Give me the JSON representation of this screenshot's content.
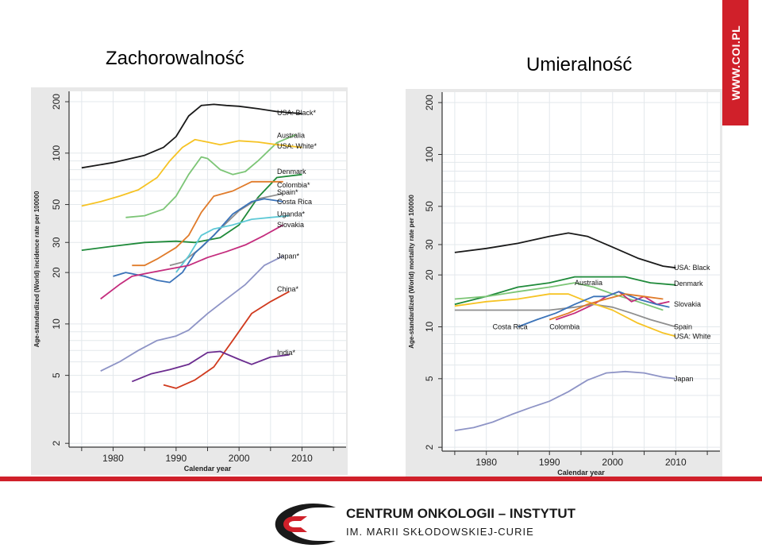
{
  "slide": {
    "title_left": "Zachorowalność",
    "title_right": "Umieralność",
    "banner_text": "WWW.COI.PL",
    "footer_line1": "CENTRUM ONKOLOGII – INSTYTUT",
    "footer_line2": "IM. MARII SKŁODOWSKIEJ-CURIE",
    "brand_color": "#d0202a"
  },
  "chart_data": [
    {
      "type": "line",
      "yscale": "log",
      "xlabel": "Calendar year",
      "ylabel": "Age-standardized (World) incidence rate per 100000",
      "xlim": [
        1973,
        2017
      ],
      "ylim": [
        1.9,
        230
      ],
      "xticks": [
        1980,
        1990,
        2000,
        2010
      ],
      "yticks": [
        2,
        5,
        10,
        20,
        30,
        50,
        100,
        200
      ],
      "grid": true,
      "series": [
        {
          "name": "USA: Black*",
          "color": "#1a1a1a",
          "label_y": 172,
          "points": [
            [
              1975,
              82
            ],
            [
              1980,
              88
            ],
            [
              1985,
              97
            ],
            [
              1988,
              108
            ],
            [
              1990,
              125
            ],
            [
              1992,
              165
            ],
            [
              1994,
              190
            ],
            [
              1996,
              193
            ],
            [
              1998,
              190
            ],
            [
              2000,
              188
            ],
            [
              2003,
              182
            ],
            [
              2006,
              175
            ],
            [
              2010,
              170
            ]
          ]
        },
        {
          "name": "Australia",
          "color": "#7cc576",
          "label_y": 127,
          "points": [
            [
              1982,
              42
            ],
            [
              1985,
              43
            ],
            [
              1988,
              47
            ],
            [
              1990,
              56
            ],
            [
              1992,
              75
            ],
            [
              1994,
              95
            ],
            [
              1995,
              93
            ],
            [
              1997,
              80
            ],
            [
              1999,
              75
            ],
            [
              2001,
              78
            ],
            [
              2003,
              90
            ],
            [
              2006,
              115
            ],
            [
              2009,
              128
            ]
          ]
        },
        {
          "name": "USA: White*",
          "color": "#f6c324",
          "label_y": 110,
          "points": [
            [
              1975,
              49
            ],
            [
              1978,
              52
            ],
            [
              1981,
              56
            ],
            [
              1984,
              61
            ],
            [
              1987,
              72
            ],
            [
              1989,
              90
            ],
            [
              1991,
              108
            ],
            [
              1993,
              120
            ],
            [
              1995,
              116
            ],
            [
              1997,
              112
            ],
            [
              2000,
              118
            ],
            [
              2003,
              116
            ],
            [
              2006,
              112
            ],
            [
              2010,
              108
            ]
          ]
        },
        {
          "name": "Denmark",
          "color": "#1f8a3a",
          "label_y": 78,
          "points": [
            [
              1975,
              27
            ],
            [
              1980,
              28.5
            ],
            [
              1985,
              30
            ],
            [
              1990,
              30.5
            ],
            [
              1993,
              30
            ],
            [
              1997,
              32
            ],
            [
              2000,
              38
            ],
            [
              2003,
              55
            ],
            [
              2006,
              72
            ],
            [
              2010,
              75
            ]
          ]
        },
        {
          "name": "Colombia*",
          "color": "#e07b2a",
          "label_y": 65,
          "points": [
            [
              1983,
              22
            ],
            [
              1985,
              22
            ],
            [
              1987,
              24
            ],
            [
              1990,
              28
            ],
            [
              1992,
              33
            ],
            [
              1994,
              45
            ],
            [
              1996,
              56
            ],
            [
              1999,
              60
            ],
            [
              2002,
              68
            ],
            [
              2005,
              68
            ],
            [
              2007,
              68
            ]
          ]
        },
        {
          "name": "Spain*",
          "color": "#8f8f8f",
          "label_y": 59,
          "points": [
            [
              1989,
              22
            ],
            [
              1991,
              23
            ],
            [
              1994,
              28
            ],
            [
              1997,
              36
            ],
            [
              2000,
              46
            ],
            [
              2003,
              54
            ],
            [
              2007,
              58
            ]
          ]
        },
        {
          "name": "Costa Rica",
          "color": "#3b73b9",
          "label_y": 52,
          "points": [
            [
              1980,
              19
            ],
            [
              1982,
              20
            ],
            [
              1985,
              19
            ],
            [
              1987,
              18
            ],
            [
              1989,
              17.5
            ],
            [
              1991,
              20
            ],
            [
              1993,
              26
            ],
            [
              1996,
              33
            ],
            [
              1999,
              44
            ],
            [
              2002,
              52
            ],
            [
              2004,
              54
            ],
            [
              2007,
              52
            ]
          ]
        },
        {
          "name": "Uganda*",
          "color": "#5ec9d6",
          "label_y": 44,
          "points": [
            [
              1990,
              20
            ],
            [
              1992,
              25
            ],
            [
              1994,
              33
            ],
            [
              1996,
              36
            ],
            [
              1999,
              38
            ],
            [
              2002,
              41
            ],
            [
              2005,
              42
            ],
            [
              2008,
              43
            ]
          ]
        },
        {
          "name": "Slovakia",
          "color": "#c42c7d",
          "label_y": 38,
          "points": [
            [
              1978,
              14
            ],
            [
              1981,
              17
            ],
            [
              1983,
              19
            ],
            [
              1986,
              20
            ],
            [
              1989,
              21
            ],
            [
              1992,
              22
            ],
            [
              1995,
              24.5
            ],
            [
              1998,
              26.5
            ],
            [
              2001,
              29
            ],
            [
              2004,
              33
            ],
            [
              2007,
              38
            ]
          ]
        },
        {
          "name": "Japan*",
          "color": "#8e94c6",
          "label_y": 25,
          "points": [
            [
              1978,
              5.3
            ],
            [
              1981,
              6
            ],
            [
              1984,
              7
            ],
            [
              1987,
              8
            ],
            [
              1990,
              8.5
            ],
            [
              1992,
              9.2
            ],
            [
              1995,
              11.5
            ],
            [
              1998,
              14
            ],
            [
              2001,
              17
            ],
            [
              2004,
              22
            ],
            [
              2007,
              25
            ]
          ]
        },
        {
          "name": "China*",
          "color": "#d03a1e",
          "label_y": 16,
          "points": [
            [
              1988,
              4.4
            ],
            [
              1990,
              4.2
            ],
            [
              1993,
              4.7
            ],
            [
              1996,
              5.6
            ],
            [
              1999,
              8
            ],
            [
              2002,
              11.5
            ],
            [
              2005,
              13.5
            ],
            [
              2008,
              15.5
            ]
          ]
        },
        {
          "name": "India*",
          "color": "#6b2c8f",
          "label_y": 6.8,
          "points": [
            [
              1983,
              4.6
            ],
            [
              1986,
              5.1
            ],
            [
              1989,
              5.4
            ],
            [
              1992,
              5.8
            ],
            [
              1995,
              6.8
            ],
            [
              1997,
              6.9
            ],
            [
              2000,
              6.2
            ],
            [
              2002,
              5.8
            ],
            [
              2005,
              6.4
            ],
            [
              2008,
              6.6
            ]
          ]
        }
      ]
    },
    {
      "type": "line",
      "yscale": "log",
      "xlabel": "Calendar year",
      "ylabel": "Age-standardized (World) mortality rate per 100000",
      "xlim": [
        1973,
        2017
      ],
      "ylim": [
        1.9,
        230
      ],
      "xticks": [
        1980,
        1990,
        2000,
        2010
      ],
      "yticks": [
        2,
        5,
        10,
        20,
        30,
        50,
        100,
        200
      ],
      "grid": true,
      "series": [
        {
          "name": "USA: Black",
          "color": "#1a1a1a",
          "label_y": 22,
          "points": [
            [
              1975,
              27
            ],
            [
              1980,
              28.5
            ],
            [
              1985,
              30.5
            ],
            [
              1990,
              33.5
            ],
            [
              1993,
              35
            ],
            [
              1996,
              33.5
            ],
            [
              2000,
              29
            ],
            [
              2004,
              25
            ],
            [
              2008,
              22.5
            ],
            [
              2010,
              22
            ]
          ]
        },
        {
          "name": "Denmark",
          "color": "#1f8a3a",
          "label_y": 17.8,
          "points": [
            [
              1975,
              13.5
            ],
            [
              1980,
              15
            ],
            [
              1985,
              17
            ],
            [
              1990,
              18
            ],
            [
              1994,
              19.5
            ],
            [
              1998,
              19.5
            ],
            [
              2002,
              19.5
            ],
            [
              2006,
              18
            ],
            [
              2010,
              17.5
            ]
          ]
        },
        {
          "name": "Australia",
          "color": "#7cc576",
          "label_y": 17.3,
          "points": [
            [
              1975,
              14.5
            ],
            [
              1980,
              15
            ],
            [
              1985,
              16
            ],
            [
              1990,
              17
            ],
            [
              1994,
              18
            ],
            [
              1997,
              17
            ],
            [
              2000,
              15.5
            ],
            [
              2004,
              14
            ],
            [
              2008,
              12.5
            ]
          ]
        },
        {
          "name": "Slovakia",
          "color": "#c42c7d",
          "label_y": 13.5,
          "points": [
            [
              1991,
              11
            ],
            [
              1994,
              12
            ],
            [
              1997,
              13.5
            ],
            [
              1999,
              15
            ],
            [
              2001,
              16
            ],
            [
              2003,
              14
            ],
            [
              2005,
              15
            ],
            [
              2007,
              13.5
            ],
            [
              2009,
              14
            ]
          ]
        },
        {
          "name": "Spain",
          "color": "#8f8f8f",
          "label_y": 10,
          "points": [
            [
              1975,
              12.5
            ],
            [
              1980,
              12.5
            ],
            [
              1985,
              12.5
            ],
            [
              1990,
              12.5
            ],
            [
              1994,
              13
            ],
            [
              1997,
              13.5
            ],
            [
              2000,
              13
            ],
            [
              2003,
              12
            ],
            [
              2006,
              11
            ],
            [
              2010,
              10
            ]
          ]
        },
        {
          "name": "USA: White",
          "color": "#f6c324",
          "label_y": 8.8,
          "points": [
            [
              1975,
              13.2
            ],
            [
              1980,
              14
            ],
            [
              1985,
              14.5
            ],
            [
              1990,
              15.5
            ],
            [
              1993,
              15.5
            ],
            [
              1996,
              14
            ],
            [
              2000,
              12.5
            ],
            [
              2004,
              10.5
            ],
            [
              2008,
              9.2
            ],
            [
              2010,
              8.8
            ]
          ]
        },
        {
          "name": "Costa Rica",
          "color": "#3b73b9",
          "label_y": 10,
          "points": [
            [
              1985,
              10
            ],
            [
              1988,
              11
            ],
            [
              1991,
              12
            ],
            [
              1994,
              13.5
            ],
            [
              1997,
              15
            ],
            [
              1999,
              15
            ],
            [
              2001,
              16
            ],
            [
              2004,
              14.5
            ],
            [
              2007,
              13.5
            ],
            [
              2009,
              13
            ]
          ]
        },
        {
          "name": "Colombia",
          "color": "#e07b2a",
          "label_y": 10,
          "points": [
            [
              1990,
              11
            ],
            [
              1993,
              12
            ],
            [
              1996,
              13.5
            ],
            [
              1999,
              14.5
            ],
            [
              2002,
              15.5
            ],
            [
              2005,
              15
            ],
            [
              2008,
              14.5
            ]
          ]
        },
        {
          "name": "Japan",
          "color": "#8e94c6",
          "label_y": 5,
          "points": [
            [
              1975,
              2.5
            ],
            [
              1978,
              2.6
            ],
            [
              1981,
              2.8
            ],
            [
              1984,
              3.1
            ],
            [
              1987,
              3.4
            ],
            [
              1990,
              3.7
            ],
            [
              1993,
              4.2
            ],
            [
              1996,
              4.9
            ],
            [
              1999,
              5.4
            ],
            [
              2002,
              5.5
            ],
            [
              2005,
              5.4
            ],
            [
              2008,
              5.1
            ],
            [
              2010,
              5
            ]
          ]
        }
      ],
      "annotations": [
        {
          "text": "Costa Rica",
          "x": 1981,
          "y": 10
        },
        {
          "text": "Colombia",
          "x": 1990,
          "y": 10
        },
        {
          "text": "Australia",
          "x": 1994,
          "y": 18
        }
      ]
    }
  ]
}
